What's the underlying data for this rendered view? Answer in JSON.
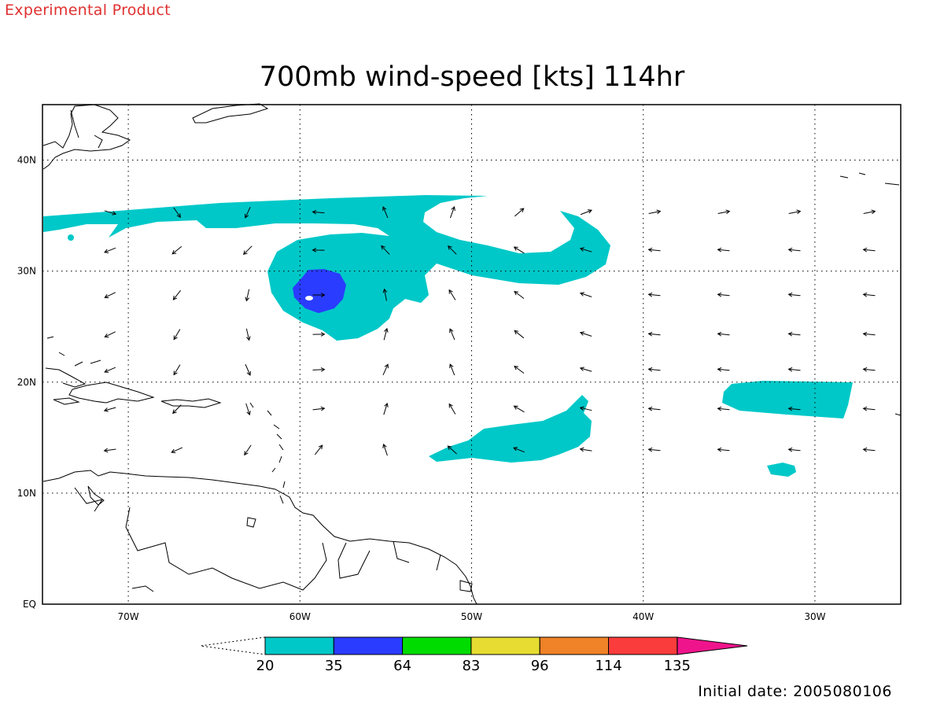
{
  "header": {
    "experimental_label": "Experimental Product",
    "title": "700mb wind-speed [kts] 114hr",
    "initial_date": "Initial date: 2005080106"
  },
  "map": {
    "lon_range": [
      -75,
      -25
    ],
    "lat_range": [
      0,
      45
    ],
    "lon_ticks": [
      {
        "value": -70,
        "label": "70W"
      },
      {
        "value": -60,
        "label": "60W"
      },
      {
        "value": -50,
        "label": "50W"
      },
      {
        "value": -40,
        "label": "40W"
      },
      {
        "value": -30,
        "label": "30W"
      }
    ],
    "lat_ticks": [
      {
        "value": 0,
        "label": "EQ"
      },
      {
        "value": 10,
        "label": "10N"
      },
      {
        "value": 20,
        "label": "20N"
      },
      {
        "value": 30,
        "label": "30N"
      },
      {
        "value": 40,
        "label": "40N"
      }
    ],
    "grid": "dotted",
    "vector_field": "wind-arrows"
  },
  "colorbar": {
    "levels": [
      "20",
      "35",
      "64",
      "83",
      "96",
      "114",
      "135"
    ],
    "colors": [
      "#00c8c8",
      "#2a3cff",
      "#00dc00",
      "#e6dc32",
      "#f08228",
      "#fa3c3c",
      "#f0148c"
    ]
  },
  "shading": {
    "band_20_35": "#00c8c8",
    "band_35_64": "#2a3cff"
  }
}
